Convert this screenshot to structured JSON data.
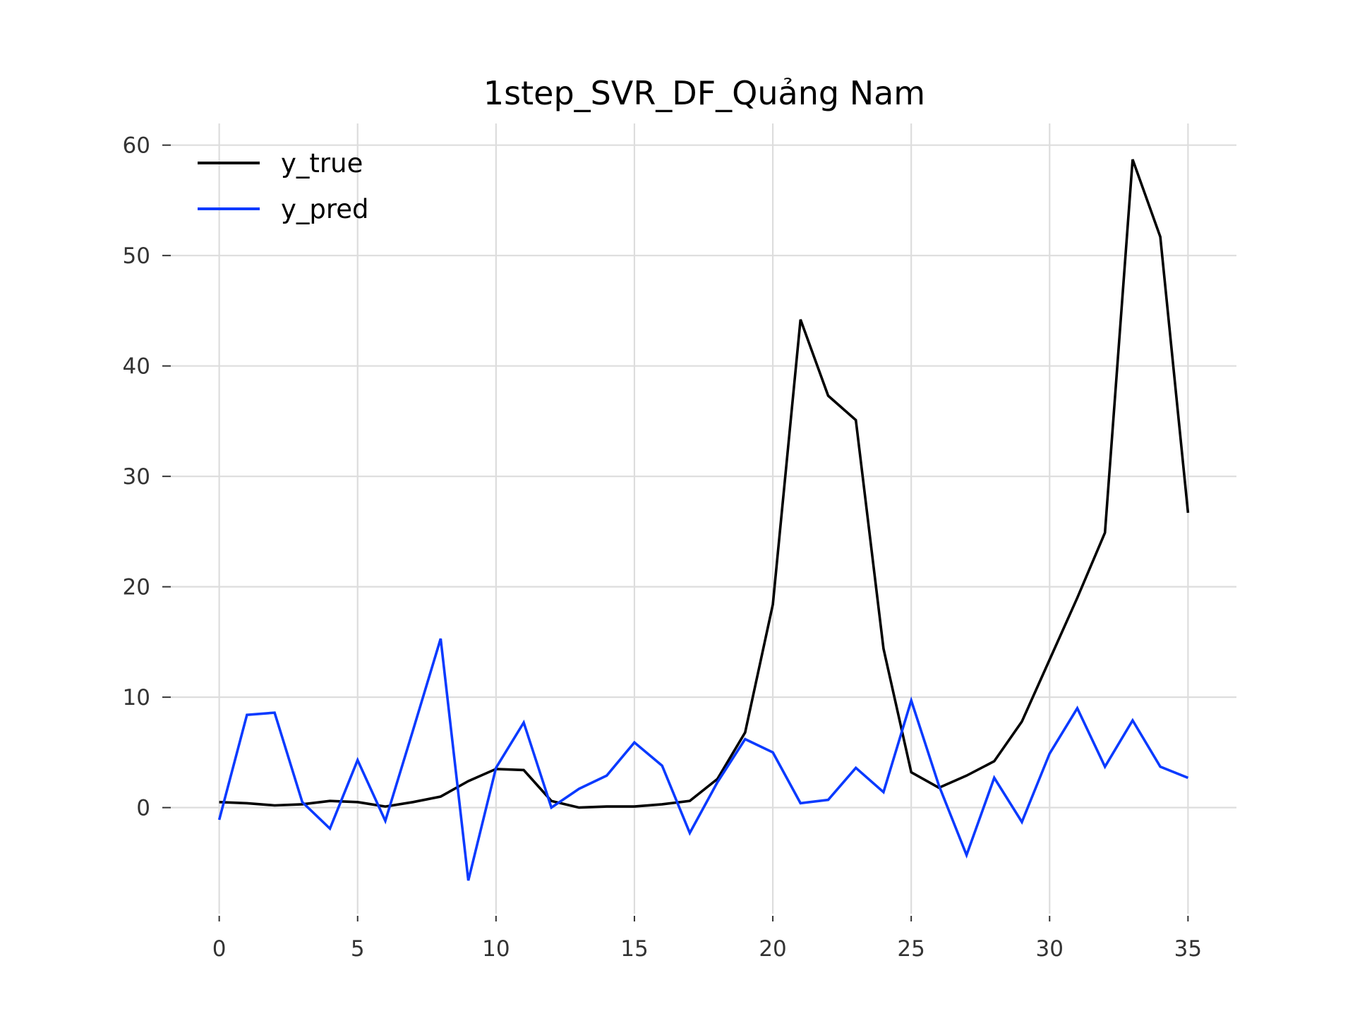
{
  "chart_data": {
    "type": "line",
    "title": "1step_SVR_DF_Quảng Nam",
    "xlabel": "",
    "ylabel": "",
    "xlim": [
      -1.75,
      36.75
    ],
    "ylim": [
      -9.8,
      62.6
    ],
    "xticks": [
      0,
      5,
      10,
      15,
      20,
      25,
      30,
      35
    ],
    "yticks": [
      0,
      10,
      20,
      30,
      40,
      50,
      60
    ],
    "xtick_labels": [
      "0",
      "5",
      "10",
      "15",
      "20",
      "25",
      "30",
      "35"
    ],
    "ytick_labels": [
      "0",
      "10",
      "20",
      "30",
      "40",
      "50",
      "60"
    ],
    "grid": true,
    "legend_position": "top-left",
    "x": [
      0,
      1,
      2,
      3,
      4,
      5,
      6,
      7,
      8,
      9,
      10,
      11,
      12,
      13,
      14,
      15,
      16,
      17,
      18,
      19,
      20,
      21,
      22,
      23,
      24,
      25,
      26,
      27,
      28,
      29,
      30,
      31,
      32,
      33,
      34,
      35
    ],
    "series": [
      {
        "name": "y_true",
        "color": "#000000",
        "values": [
          0.5,
          0.4,
          0.2,
          0.3,
          0.6,
          0.5,
          0.1,
          0.5,
          1.0,
          2.4,
          3.5,
          3.4,
          0.6,
          0.0,
          0.1,
          0.1,
          0.3,
          0.6,
          2.6,
          6.8,
          18.4,
          44.2,
          37.3,
          35.1,
          14.4,
          3.2,
          1.8,
          2.9,
          4.2,
          7.8,
          13.4,
          19.0,
          24.9,
          58.7,
          51.7,
          26.7
        ]
      },
      {
        "name": "y_pred",
        "color": "#0a3aff",
        "values": [
          -1.1,
          8.4,
          8.6,
          0.5,
          -1.9,
          4.3,
          -1.2,
          7.0,
          15.3,
          -6.6,
          3.6,
          7.7,
          0.0,
          1.7,
          2.9,
          5.9,
          3.8,
          -2.3,
          2.3,
          6.2,
          5.0,
          0.4,
          0.7,
          3.6,
          1.4,
          9.7,
          2.0,
          -4.3,
          2.7,
          -1.3,
          4.9,
          9.0,
          3.7,
          7.9,
          3.7,
          2.7
        ]
      }
    ]
  }
}
